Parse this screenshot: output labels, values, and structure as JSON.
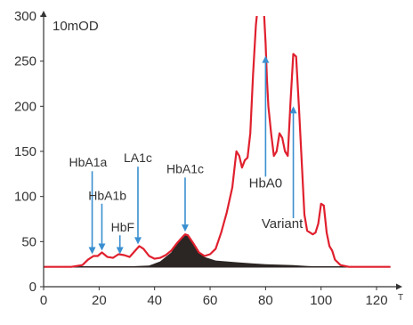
{
  "chart_data": {
    "type": "line",
    "ylabel": "10mOD",
    "xlabel": "T",
    "xlim": [
      0,
      128
    ],
    "ylim": [
      0,
      300
    ],
    "xticks": [
      0,
      20,
      40,
      60,
      80,
      100,
      120
    ],
    "yticks": [
      0,
      50,
      100,
      150,
      200,
      250,
      300
    ],
    "grid": false,
    "colors": {
      "trace": "#e0202e",
      "shaded": "#2b2523",
      "arrow": "#3a8fd0",
      "axis": "#333333"
    },
    "trace": {
      "x": [
        0,
        10,
        14,
        16,
        18,
        19.5,
        21,
        23,
        25,
        27,
        29,
        31,
        33,
        34.5,
        36,
        38,
        40,
        42,
        44,
        46,
        48,
        50,
        51,
        52,
        54,
        56,
        58,
        60,
        62,
        64,
        66,
        68,
        69.5,
        70.5,
        71.5,
        72.5,
        73.5,
        74.5,
        75.5,
        76.5,
        77.5,
        78.5,
        79,
        79.5,
        80,
        80.5,
        81,
        82,
        83,
        84,
        85,
        86,
        87,
        88,
        89,
        90,
        91,
        92,
        93,
        94,
        95,
        96,
        97,
        98,
        99,
        100,
        101,
        102,
        103,
        104,
        105,
        107,
        110,
        115,
        120,
        125
      ],
      "y": [
        22,
        22,
        24,
        30,
        34,
        34,
        38,
        33,
        32,
        36,
        35,
        33,
        40,
        45,
        42,
        34,
        31,
        32,
        35,
        40,
        48,
        55,
        58,
        57,
        48,
        38,
        34,
        36,
        42,
        60,
        82,
        110,
        150,
        145,
        132,
        140,
        143,
        170,
        235,
        290,
        320,
        330,
        320,
        300,
        270,
        230,
        200,
        170,
        145,
        150,
        170,
        165,
        150,
        145,
        205,
        258,
        255,
        200,
        140,
        80,
        62,
        60,
        58,
        60,
        70,
        92,
        90,
        60,
        45,
        40,
        30,
        24,
        22,
        22,
        22,
        22
      ]
    },
    "shaded_peak": {
      "x": [
        0,
        20,
        30,
        38,
        42,
        46,
        48,
        50,
        51,
        52,
        54,
        56,
        58,
        62,
        66,
        70,
        75,
        80,
        85,
        90,
        95,
        100,
        110,
        125
      ],
      "y": [
        22,
        22,
        22.5,
        23.5,
        28,
        38,
        48,
        55,
        58,
        57,
        48,
        38,
        33,
        29,
        28,
        27,
        26,
        25,
        24.5,
        24,
        23,
        22.5,
        22,
        22
      ]
    },
    "annotations": [
      {
        "label": "HbA1a",
        "label_x": 16,
        "label_y": 133,
        "arrow_x": 17.5,
        "arrow_from": 128,
        "arrow_to": 36
      },
      {
        "label": "HbA1b",
        "label_x": 23,
        "label_y": 96,
        "arrow_x": 21,
        "arrow_from": 92,
        "arrow_to": 40
      },
      {
        "label": "HbF",
        "label_x": 28.5,
        "label_y": 61,
        "arrow_x": 27.5,
        "arrow_from": 57,
        "arrow_to": 36
      },
      {
        "label": "LA1c",
        "label_x": 34,
        "label_y": 138,
        "arrow_x": 34,
        "arrow_from": 133,
        "arrow_to": 47
      },
      {
        "label": "HbA1c",
        "label_x": 51,
        "label_y": 126,
        "arrow_x": 51,
        "arrow_from": 121,
        "arrow_to": 61
      },
      {
        "label": "HbA0",
        "label_x": 80,
        "label_y": 110,
        "arrow_x": 80,
        "arrow_from": 122,
        "arrow_to": 256,
        "big": true
      },
      {
        "label": "Variant",
        "label_x": 86,
        "label_y": 65,
        "arrow_x": 90,
        "arrow_from": 76,
        "arrow_to": 200,
        "big": true
      }
    ]
  }
}
